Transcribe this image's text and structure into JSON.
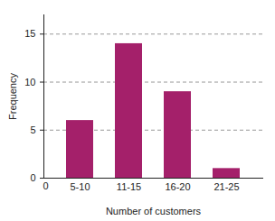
{
  "chart_data": {
    "type": "bar",
    "x_label": "Number of customers",
    "y_label": "Frequency",
    "categories": [
      "5-10",
      "11-15",
      "16-20",
      "21-25"
    ],
    "values": [
      6,
      14,
      9,
      1
    ],
    "color": "#a4206a",
    "ylim": [
      0,
      17
    ],
    "yticks": [
      0,
      5,
      10,
      15
    ],
    "grid": true,
    "annotations": [
      "0"
    ]
  }
}
